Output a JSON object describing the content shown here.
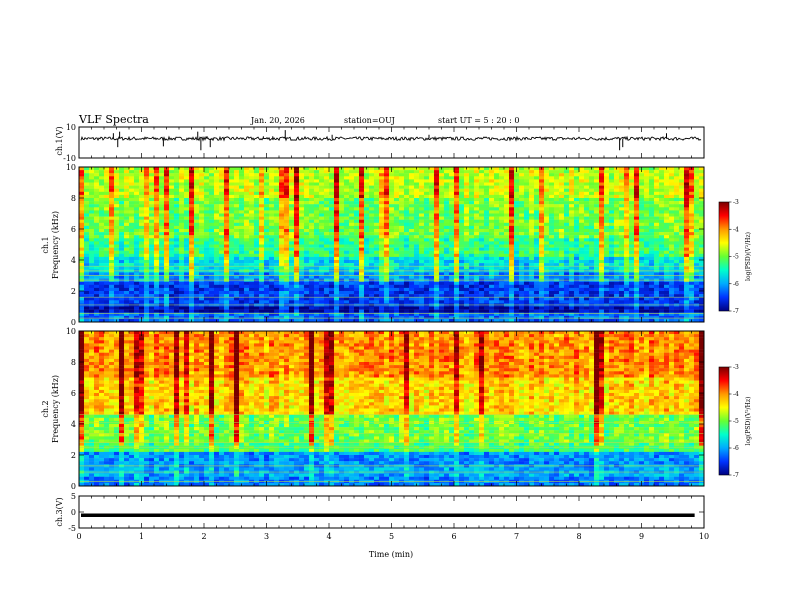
{
  "header": {
    "title": "VLF Spectra",
    "date": "Jan. 20, 2026",
    "station": "station=OUJ",
    "start": "start  UT  =   5  : 20 : 0"
  },
  "colorbar": {
    "label": "log(PSD)(V²/Hz)",
    "ticks": [
      "-3",
      "-4",
      "-5",
      "-6",
      "-7"
    ],
    "colors": [
      "#7a0000",
      "#ff0000",
      "#ff9900",
      "#ffff00",
      "#66ff33",
      "#00ffcc",
      "#00aaff",
      "#0033ff",
      "#000080"
    ]
  },
  "chart_data": [
    {
      "type": "line",
      "name": "ch1-waveform",
      "ylabel": "ch.1(V)",
      "ylim": [
        -10,
        10
      ],
      "yticks": [
        "10",
        "-10"
      ],
      "baseline": 2.5,
      "spikes": [
        [
          0.55,
          6
        ],
        [
          0.62,
          -3
        ],
        [
          0.65,
          7
        ],
        [
          1.35,
          -2.5
        ],
        [
          1.9,
          7
        ],
        [
          1.95,
          -5
        ],
        [
          2.05,
          4
        ],
        [
          2.1,
          -3
        ],
        [
          2.95,
          4
        ],
        [
          3.1,
          4
        ],
        [
          3.3,
          8
        ],
        [
          4.05,
          5
        ],
        [
          5.6,
          5
        ],
        [
          8.65,
          -5
        ],
        [
          8.7,
          -3
        ],
        [
          9.4,
          6
        ]
      ]
    },
    {
      "type": "heatmap",
      "name": "ch1-spectrogram",
      "ylabel": "ch.1",
      "ylabel2": "Frequency (kHz)",
      "ylim": [
        0,
        10
      ],
      "yticks": [
        "0",
        "2",
        "4",
        "6",
        "8",
        "10"
      ],
      "bands": [
        {
          "f0": 0,
          "f1": 0.5,
          "level": -6.3
        },
        {
          "f0": 0.5,
          "f1": 1.0,
          "level": -6.9
        },
        {
          "f0": 1.0,
          "f1": 2.5,
          "level": -6.5
        },
        {
          "f0": 2.5,
          "f1": 3.2,
          "level": -6.1
        },
        {
          "f0": 3.2,
          "f1": 4.2,
          "level": -5.7
        },
        {
          "f0": 4.2,
          "f1": 5.5,
          "level": -5.3
        },
        {
          "f0": 5.5,
          "f1": 8.0,
          "level": -5.0
        },
        {
          "f0": 8.0,
          "f1": 10.0,
          "level": -4.7
        }
      ],
      "lines_khz": [
        0.25,
        0.55,
        1.1,
        1.6,
        2.7,
        3.0,
        3.3,
        3.6
      ]
    },
    {
      "type": "heatmap",
      "name": "ch2-spectrogram",
      "ylabel": "ch.2",
      "ylabel2": "Frequency (kHz)",
      "ylim": [
        0,
        10
      ],
      "yticks": [
        "0",
        "2",
        "4",
        "6",
        "8",
        "10"
      ],
      "bands": [
        {
          "f0": 0,
          "f1": 0.6,
          "level": -6.2
        },
        {
          "f0": 0.6,
          "f1": 1.2,
          "level": -6.0
        },
        {
          "f0": 1.2,
          "f1": 2.2,
          "level": -6.1
        },
        {
          "f0": 2.2,
          "f1": 2.8,
          "level": -5.2
        },
        {
          "f0": 2.8,
          "f1": 4.5,
          "level": -5.0
        },
        {
          "f0": 4.5,
          "f1": 7.0,
          "level": -4.3
        },
        {
          "f0": 7.0,
          "f1": 10.0,
          "level": -4.0
        }
      ],
      "lines_khz": [
        0.3,
        0.9,
        1.3,
        2.5,
        2.8,
        3.4,
        4.1,
        4.6
      ]
    },
    {
      "type": "line",
      "name": "ch3-waveform",
      "ylabel": "ch.3(V)",
      "ylim": [
        -5,
        5
      ],
      "yticks": [
        "5",
        "0",
        "-5"
      ],
      "baseline": -1
    }
  ],
  "xaxis": {
    "label": "Time (min)",
    "xlim": [
      0,
      10
    ],
    "ticks": [
      "0",
      "1",
      "2",
      "3",
      "4",
      "5",
      "6",
      "7",
      "8",
      "9",
      "10"
    ]
  }
}
